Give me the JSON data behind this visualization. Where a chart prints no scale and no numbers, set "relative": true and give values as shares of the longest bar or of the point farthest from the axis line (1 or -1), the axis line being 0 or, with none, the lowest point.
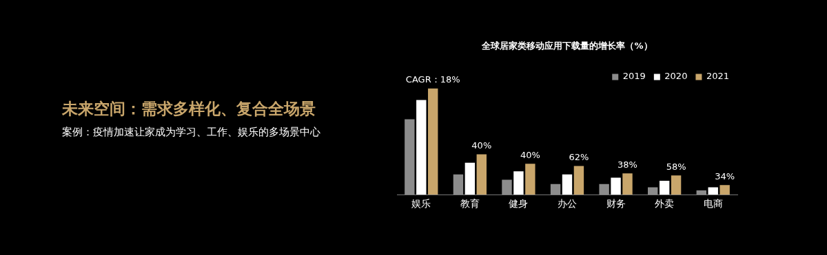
{
  "chart_data": {
    "type": "bar",
    "title": "全球居家类移动应用下载量的增长率（%）",
    "annotations": [
      "未来空间：需求多样化、复合全场景",
      "案例：疫情加速让家成为学习、工作、娱乐的多场景中心",
      "CAGR：18%",
      "40%",
      "40%",
      "62%",
      "38%",
      "58%",
      "34%"
    ],
    "relative": true,
    "categories": [
      "娱乐",
      "教育",
      "健身",
      "办公",
      "财务",
      "外卖",
      "电商"
    ],
    "series": [
      {
        "name": "2019",
        "color": "#8c8c8c",
        "values": [
          0.71,
          0.19,
          0.14,
          0.1,
          0.1,
          0.07,
          0.04
        ]
      },
      {
        "name": "2020",
        "color": "#ffffff",
        "values": [
          0.89,
          0.3,
          0.22,
          0.19,
          0.16,
          0.13,
          0.07
        ]
      },
      {
        "name": "2021",
        "color": "#c9a66b",
        "values": [
          1,
          0.38,
          0.29,
          0.27,
          0.2,
          0.18,
          0.09
        ]
      }
    ],
    "legend": "top right"
  }
}
